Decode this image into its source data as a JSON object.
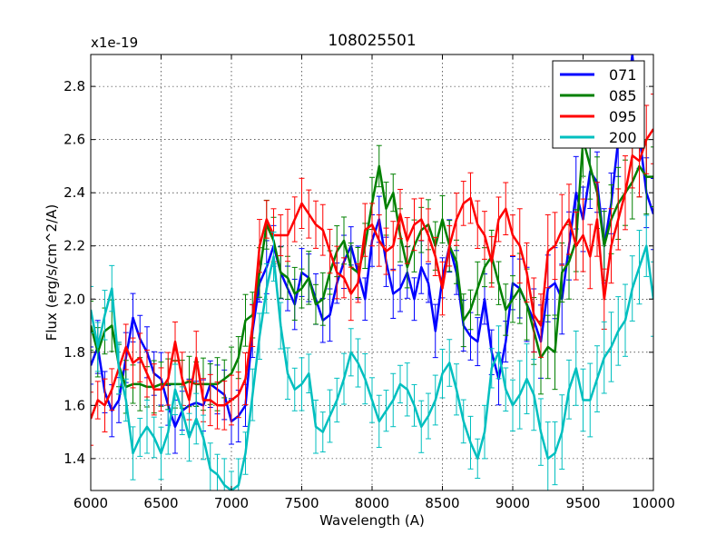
{
  "chart_data": {
    "type": "line",
    "title": "108025501",
    "xlabel": "Wavelength (A)",
    "ylabel": "Flux (erg/s/cm^2/A)",
    "y_offset_label": "x1e-19",
    "xlim": [
      6000,
      10000
    ],
    "ylim": [
      1.28,
      2.92
    ],
    "x_ticks": [
      6000,
      6500,
      7000,
      7500,
      8000,
      8500,
      9000,
      9500,
      10000
    ],
    "y_ticks": [
      1.4,
      1.6,
      1.8,
      2.0,
      2.2,
      2.4,
      2.6,
      2.8
    ],
    "grid": true,
    "legend_position": "top-right",
    "x": [
      6000,
      6050,
      6100,
      6150,
      6200,
      6250,
      6300,
      6350,
      6400,
      6450,
      6500,
      6550,
      6600,
      6650,
      6700,
      6750,
      6800,
      6850,
      6900,
      6950,
      7000,
      7050,
      7100,
      7150,
      7200,
      7250,
      7300,
      7350,
      7400,
      7450,
      7500,
      7550,
      7600,
      7650,
      7700,
      7750,
      7800,
      7850,
      7900,
      7950,
      8000,
      8050,
      8100,
      8150,
      8200,
      8250,
      8300,
      8350,
      8400,
      8450,
      8500,
      8550,
      8600,
      8650,
      8700,
      8750,
      8800,
      8850,
      8900,
      8950,
      9000,
      9050,
      9100,
      9150,
      9200,
      9250,
      9300,
      9350,
      9400,
      9450,
      9500,
      9550,
      9600,
      9650,
      9700,
      9750,
      9800,
      9850,
      9900,
      9950,
      10000
    ],
    "series": [
      {
        "name": "071",
        "color": "#0000ff",
        "values": [
          1.75,
          1.82,
          1.65,
          1.58,
          1.62,
          1.78,
          1.93,
          1.85,
          1.8,
          1.72,
          1.7,
          1.6,
          1.52,
          1.58,
          1.6,
          1.61,
          1.6,
          1.68,
          1.66,
          1.64,
          1.54,
          1.56,
          1.6,
          1.88,
          2.06,
          2.12,
          2.2,
          2.1,
          2.04,
          1.98,
          2.1,
          2.08,
          2.0,
          1.92,
          1.94,
          2.06,
          2.14,
          2.2,
          2.1,
          2.0,
          2.22,
          2.3,
          2.14,
          2.02,
          2.04,
          2.1,
          2.0,
          2.12,
          2.06,
          1.88,
          2.08,
          2.2,
          2.1,
          1.9,
          1.86,
          1.84,
          2.0,
          1.8,
          1.7,
          1.84,
          2.06,
          2.04,
          1.98,
          1.92,
          1.84,
          2.04,
          2.06,
          2.0,
          2.2,
          2.4,
          2.3,
          2.48,
          2.44,
          2.2,
          2.36,
          2.6,
          2.7,
          2.92,
          2.62,
          2.4,
          2.32
        ]
      },
      {
        "name": "085",
        "color": "#008000",
        "values": [
          1.9,
          1.8,
          1.88,
          1.9,
          1.75,
          1.67,
          1.68,
          1.68,
          1.67,
          1.67,
          1.68,
          1.68,
          1.68,
          1.68,
          1.69,
          1.68,
          1.68,
          1.68,
          1.68,
          1.7,
          1.72,
          1.78,
          1.92,
          1.94,
          2.1,
          2.28,
          2.22,
          2.1,
          2.08,
          2.02,
          2.04,
          2.08,
          1.98,
          2.0,
          2.1,
          2.18,
          2.22,
          2.12,
          2.1,
          2.2,
          2.36,
          2.5,
          2.34,
          2.4,
          2.24,
          2.12,
          2.2,
          2.26,
          2.28,
          2.2,
          2.3,
          2.2,
          2.14,
          1.92,
          1.96,
          2.04,
          2.12,
          2.16,
          2.06,
          1.96,
          2.0,
          2.04,
          1.98,
          1.88,
          1.78,
          1.82,
          1.8,
          2.1,
          2.14,
          2.22,
          2.6,
          2.5,
          2.4,
          2.2,
          2.3,
          2.36,
          2.4,
          2.44,
          2.5,
          2.46,
          2.46
        ]
      },
      {
        "name": "095",
        "color": "#ff0000",
        "values": [
          1.55,
          1.62,
          1.6,
          1.66,
          1.74,
          1.82,
          1.76,
          1.78,
          1.72,
          1.66,
          1.66,
          1.7,
          1.84,
          1.7,
          1.62,
          1.78,
          1.62,
          1.62,
          1.6,
          1.6,
          1.62,
          1.64,
          1.7,
          1.9,
          2.2,
          2.3,
          2.24,
          2.24,
          2.24,
          2.3,
          2.36,
          2.32,
          2.28,
          2.26,
          2.18,
          2.1,
          2.08,
          2.02,
          2.06,
          2.26,
          2.28,
          2.22,
          2.18,
          2.2,
          2.32,
          2.22,
          2.28,
          2.3,
          2.24,
          2.16,
          2.04,
          2.2,
          2.3,
          2.36,
          2.38,
          2.28,
          2.24,
          2.14,
          2.3,
          2.34,
          2.24,
          2.2,
          2.1,
          1.94,
          1.9,
          2.18,
          2.2,
          2.26,
          2.3,
          2.2,
          2.24,
          2.16,
          2.3,
          2.0,
          2.2,
          2.3,
          2.4,
          2.54,
          2.52,
          2.6,
          2.64
        ]
      },
      {
        "name": "200",
        "color": "#00bfbf",
        "values": [
          1.96,
          1.82,
          1.94,
          2.04,
          1.74,
          1.62,
          1.42,
          1.48,
          1.52,
          1.48,
          1.42,
          1.5,
          1.66,
          1.58,
          1.48,
          1.55,
          1.48,
          1.36,
          1.34,
          1.3,
          1.28,
          1.3,
          1.42,
          1.64,
          1.86,
          2.04,
          2.16,
          1.9,
          1.72,
          1.66,
          1.68,
          1.72,
          1.52,
          1.5,
          1.56,
          1.62,
          1.7,
          1.8,
          1.76,
          1.7,
          1.62,
          1.54,
          1.58,
          1.62,
          1.68,
          1.66,
          1.6,
          1.52,
          1.56,
          1.62,
          1.72,
          1.76,
          1.66,
          1.54,
          1.46,
          1.4,
          1.5,
          1.74,
          1.8,
          1.66,
          1.6,
          1.64,
          1.7,
          1.64,
          1.5,
          1.4,
          1.42,
          1.5,
          1.66,
          1.74,
          1.62,
          1.62,
          1.7,
          1.78,
          1.82,
          1.88,
          1.92,
          2.04,
          2.12,
          2.2,
          2.0
        ]
      }
    ]
  }
}
